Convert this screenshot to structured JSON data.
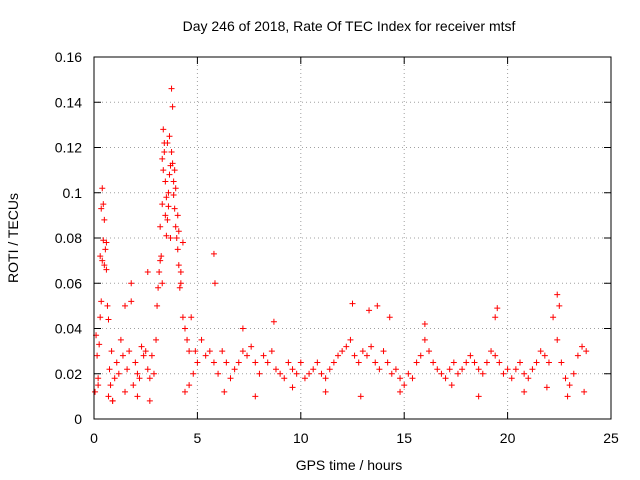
{
  "chart_data": {
    "type": "scatter",
    "title": "Day 246 of 2018, Rate Of TEC Index for receiver mtsf",
    "xlabel": "GPS time / hours",
    "ylabel": "ROTI / TECUs",
    "xlim": [
      0,
      25
    ],
    "ylim": [
      0,
      0.16
    ],
    "x_ticks": [
      0,
      5,
      10,
      15,
      20,
      25
    ],
    "x_tick_labels": [
      "0",
      "5",
      "10",
      "15",
      "20",
      "25"
    ],
    "y_ticks": [
      0,
      0.02,
      0.04,
      0.06,
      0.08,
      0.1,
      0.12,
      0.14,
      0.16
    ],
    "y_tick_labels": [
      "0",
      "0.02",
      "0.04",
      "0.06",
      "0.08",
      "0.1",
      "0.12",
      "0.14",
      "0.16"
    ],
    "grid": true,
    "marker": "+",
    "color": "#ff0000",
    "series": [
      {
        "name": "ROTI",
        "x": [
          0.05,
          0.1,
          0.15,
          0.2,
          0.25,
          0.3,
          0.35,
          0.4,
          0.45,
          0.5,
          0.55,
          0.6,
          0.65,
          0.7,
          0.75,
          0.8,
          0.85,
          0.9,
          1.0,
          1.1,
          1.2,
          1.3,
          1.4,
          1.5,
          1.6,
          1.7,
          1.8,
          1.9,
          2.0,
          2.1,
          2.2,
          2.3,
          2.4,
          2.5,
          2.6,
          2.7,
          2.8,
          2.9,
          3.0,
          3.05,
          3.1,
          3.15,
          3.2,
          3.25,
          3.3,
          3.35,
          3.4,
          3.45,
          3.5,
          3.55,
          3.6,
          3.65,
          3.7,
          3.75,
          3.8,
          3.85,
          3.9,
          3.95,
          4.0,
          4.05,
          4.1,
          4.15,
          4.2,
          4.3,
          4.4,
          4.5,
          4.6,
          4.7,
          4.8,
          4.9,
          5.0,
          5.2,
          5.4,
          5.6,
          5.8,
          6.0,
          6.2,
          6.4,
          6.6,
          6.8,
          7.0,
          7.2,
          7.4,
          7.6,
          7.8,
          8.0,
          8.2,
          8.4,
          8.6,
          8.8,
          9.0,
          9.2,
          9.4,
          9.6,
          9.8,
          10.0,
          10.2,
          10.4,
          10.6,
          10.8,
          11.0,
          11.2,
          11.4,
          11.6,
          11.8,
          12.0,
          12.2,
          12.4,
          12.6,
          12.8,
          13.0,
          13.2,
          13.4,
          13.6,
          13.8,
          14.0,
          14.2,
          14.4,
          14.6,
          14.8,
          15.0,
          15.2,
          15.4,
          15.6,
          15.8,
          16.0,
          16.2,
          16.4,
          16.6,
          16.8,
          17.0,
          17.2,
          17.4,
          17.6,
          17.8,
          18.0,
          18.2,
          18.4,
          18.6,
          18.8,
          19.0,
          19.2,
          19.4,
          19.6,
          19.8,
          20.0,
          20.2,
          20.4,
          20.6,
          20.8,
          21.0,
          21.2,
          21.4,
          21.6,
          21.8,
          22.0,
          22.2,
          22.4,
          22.6,
          22.8,
          23.0,
          23.2,
          23.4,
          23.6,
          23.8,
          3.75,
          3.8,
          3.35,
          3.4,
          3.3,
          3.9,
          3.95,
          3.6,
          3.2,
          3.45,
          0.4,
          0.45,
          0.35,
          0.6,
          0.5,
          1.8,
          5.8,
          5.85,
          0.3,
          2.6,
          22.4,
          22.5,
          12.5,
          13.3,
          13.7,
          14.3,
          19.5,
          19.4,
          16.0,
          8.7,
          7.2,
          0.2,
          0.7,
          0.9,
          1.5,
          2.1,
          2.7,
          4.4,
          4.6,
          6.3,
          7.8,
          9.6,
          11.2,
          12.9,
          14.8,
          17.3,
          18.6,
          20.8,
          21.9,
          22.9,
          23.7,
          3.55,
          3.65,
          3.85,
          4.05,
          4.1,
          4.2,
          4.3,
          3.5,
          3.7,
          3.3
        ],
        "y": [
          0.012,
          0.037,
          0.028,
          0.018,
          0.033,
          0.045,
          0.052,
          0.07,
          0.079,
          0.088,
          0.075,
          0.066,
          0.05,
          0.044,
          0.022,
          0.015,
          0.03,
          0.008,
          0.018,
          0.025,
          0.02,
          0.035,
          0.028,
          0.05,
          0.022,
          0.03,
          0.052,
          0.015,
          0.025,
          0.02,
          0.018,
          0.032,
          0.028,
          0.03,
          0.022,
          0.018,
          0.028,
          0.02,
          0.035,
          0.05,
          0.058,
          0.065,
          0.07,
          0.072,
          0.095,
          0.11,
          0.118,
          0.105,
          0.098,
          0.088,
          0.094,
          0.108,
          0.112,
          0.118,
          0.113,
          0.099,
          0.093,
          0.085,
          0.08,
          0.075,
          0.068,
          0.058,
          0.06,
          0.045,
          0.04,
          0.035,
          0.03,
          0.045,
          0.02,
          0.03,
          0.025,
          0.035,
          0.028,
          0.03,
          0.025,
          0.02,
          0.03,
          0.025,
          0.018,
          0.022,
          0.025,
          0.03,
          0.028,
          0.032,
          0.025,
          0.02,
          0.028,
          0.025,
          0.03,
          0.022,
          0.02,
          0.018,
          0.025,
          0.022,
          0.02,
          0.025,
          0.018,
          0.02,
          0.022,
          0.025,
          0.02,
          0.018,
          0.022,
          0.025,
          0.028,
          0.03,
          0.032,
          0.035,
          0.028,
          0.025,
          0.03,
          0.028,
          0.032,
          0.025,
          0.022,
          0.03,
          0.025,
          0.02,
          0.022,
          0.018,
          0.015,
          0.02,
          0.018,
          0.025,
          0.028,
          0.035,
          0.03,
          0.025,
          0.022,
          0.02,
          0.018,
          0.022,
          0.025,
          0.02,
          0.022,
          0.025,
          0.028,
          0.025,
          0.022,
          0.02,
          0.025,
          0.03,
          0.028,
          0.025,
          0.02,
          0.022,
          0.018,
          0.022,
          0.025,
          0.02,
          0.018,
          0.022,
          0.025,
          0.03,
          0.028,
          0.025,
          0.045,
          0.035,
          0.025,
          0.018,
          0.015,
          0.02,
          0.028,
          0.032,
          0.03,
          0.146,
          0.138,
          0.128,
          0.122,
          0.115,
          0.11,
          0.102,
          0.1,
          0.085,
          0.09,
          0.102,
          0.095,
          0.093,
          0.078,
          0.068,
          0.06,
          0.073,
          0.06,
          0.072,
          0.065,
          0.055,
          0.05,
          0.051,
          0.048,
          0.05,
          0.045,
          0.049,
          0.045,
          0.042,
          0.043,
          0.04,
          0.015,
          0.01,
          0.008,
          0.012,
          0.01,
          0.008,
          0.012,
          0.015,
          0.012,
          0.01,
          0.014,
          0.012,
          0.01,
          0.012,
          0.015,
          0.01,
          0.012,
          0.014,
          0.01,
          0.012,
          0.122,
          0.125,
          0.105,
          0.09,
          0.083,
          0.065,
          0.078,
          0.081,
          0.08,
          0.06
        ]
      }
    ]
  }
}
